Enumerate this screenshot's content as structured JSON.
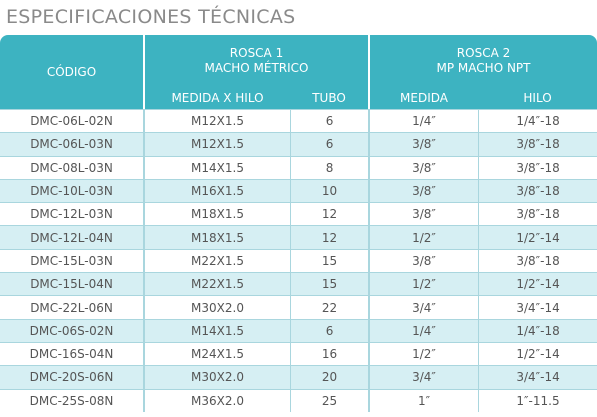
{
  "header": {
    "title": "ESPECIFICACIONES TÉCNICAS"
  },
  "table": {
    "groups": {
      "code": "CÓDIGO",
      "rosca1": [
        "ROSCA 1",
        "MACHO MÉTRICO"
      ],
      "rosca2": [
        "ROSCA 2",
        "MP MACHO NPT"
      ]
    },
    "columns": [
      "MEDIDA X HILO",
      "TUBO",
      "MEDIDA",
      "HILO"
    ],
    "rows": [
      [
        "DMC-06L-02N",
        "M12X1.5",
        6,
        "1/4″",
        "1/4″-18"
      ],
      [
        "DMC-06L-03N",
        "M12X1.5",
        6,
        "3/8″",
        "3/8″-18"
      ],
      [
        "DMC-08L-03N",
        "M14X1.5",
        8,
        "3/8″",
        "3/8″-18"
      ],
      [
        "DMC-10L-03N",
        "M16X1.5",
        10,
        "3/8″",
        "3/8″-18"
      ],
      [
        "DMC-12L-03N",
        "M18X1.5",
        12,
        "3/8″",
        "3/8″-18"
      ],
      [
        "DMC-12L-04N",
        "M18X1.5",
        12,
        "1/2″",
        "1/2″-14"
      ],
      [
        "DMC-15L-03N",
        "M22X1.5",
        15,
        "3/8″",
        "3/8″-18"
      ],
      [
        "DMC-15L-04N",
        "M22X1.5",
        15,
        "1/2″",
        "1/2″-14"
      ],
      [
        "DMC-22L-06N",
        "M30X2.0",
        22,
        "3/4″",
        "3/4″-14"
      ],
      [
        "DMC-06S-02N",
        "M14X1.5",
        6,
        "1/4″",
        "1/4″-18"
      ],
      [
        "DMC-16S-04N",
        "M24X1.5",
        16,
        "1/2″",
        "1/2″-14"
      ],
      [
        "DMC-20S-06N",
        "M30X2.0",
        20,
        "3/4″",
        "3/4″-14"
      ],
      [
        "DMC-25S-08N",
        "M36X2.0",
        25,
        "1″",
        "1″-11.5"
      ]
    ]
  }
}
